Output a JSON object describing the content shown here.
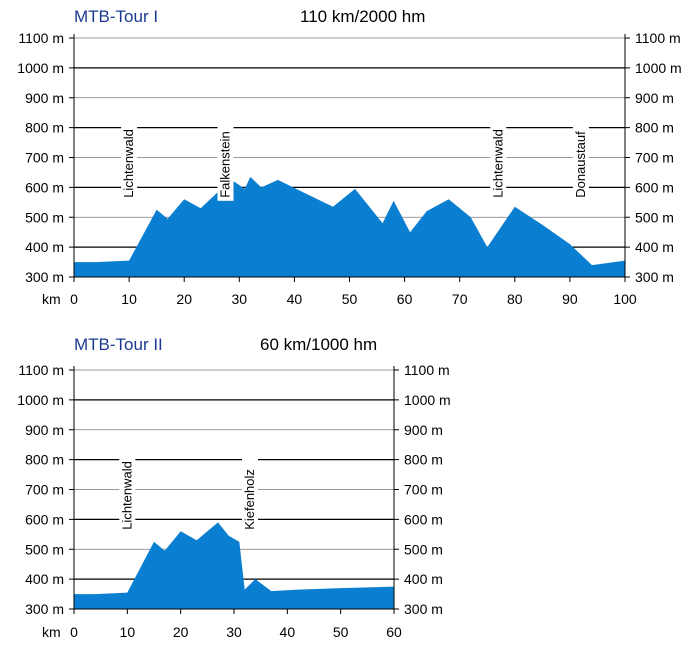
{
  "chart_data": [
    {
      "type": "area",
      "title": "MTB-Tour I",
      "subtitle": "110 km/2000 hm",
      "x_unit_label": "km",
      "xlim": [
        0,
        100
      ],
      "ylim": [
        300,
        1100
      ],
      "x_ticks": [
        0,
        10,
        20,
        30,
        40,
        50,
        60,
        70,
        80,
        90,
        100
      ],
      "y_ticks": [
        300,
        400,
        500,
        600,
        700,
        800,
        900,
        1000,
        1100
      ],
      "y_tick_labels": [
        "300 m",
        "400 m",
        "500 m",
        "600 m",
        "700 m",
        "800 m",
        "900 m",
        "1000 m",
        "1100 m"
      ],
      "grid": true,
      "fill_color": "#0a7fd1",
      "series": [
        {
          "x": [
            0,
            4,
            10,
            15,
            17,
            20,
            23,
            27,
            29,
            31,
            32,
            34,
            37,
            42,
            47,
            51,
            56,
            58,
            61,
            64,
            68,
            72,
            75,
            80,
            85,
            90,
            94,
            100
          ],
          "y": [
            350,
            350,
            355,
            525,
            495,
            560,
            530,
            600,
            620,
            595,
            635,
            600,
            625,
            580,
            535,
            595,
            480,
            555,
            450,
            520,
            560,
            500,
            400,
            535,
            475,
            410,
            340,
            355
          ]
        }
      ],
      "annotations": [
        {
          "label": "Lichtenwald",
          "x": 10
        },
        {
          "label": "Falkenstein",
          "x": 27.5
        },
        {
          "label": "Lichtenwald",
          "x": 77
        },
        {
          "label": "Donaustauf",
          "x": 92
        }
      ]
    },
    {
      "type": "area",
      "title": "MTB-Tour II",
      "subtitle": "60 km/1000 hm",
      "x_unit_label": "km",
      "xlim": [
        0,
        60
      ],
      "ylim": [
        300,
        1100
      ],
      "x_ticks": [
        0,
        10,
        20,
        30,
        40,
        50,
        60
      ],
      "y_ticks": [
        300,
        400,
        500,
        600,
        700,
        800,
        900,
        1000,
        1100
      ],
      "y_tick_labels": [
        "300 m",
        "400 m",
        "500 m",
        "600 m",
        "700 m",
        "800 m",
        "900 m",
        "1000 m",
        "1100 m"
      ],
      "grid": true,
      "fill_color": "#0a7fd1",
      "series": [
        {
          "x": [
            0,
            4,
            10,
            15,
            17,
            20,
            23,
            27,
            29,
            31,
            32,
            34,
            37,
            42,
            50,
            60
          ],
          "y": [
            350,
            350,
            355,
            525,
            495,
            560,
            530,
            590,
            545,
            525,
            365,
            400,
            360,
            365,
            370,
            375
          ]
        }
      ],
      "annotations": [
        {
          "label": "Lichtenwald",
          "x": 10
        },
        {
          "label": "Kiefenholz",
          "x": 33
        }
      ]
    }
  ]
}
